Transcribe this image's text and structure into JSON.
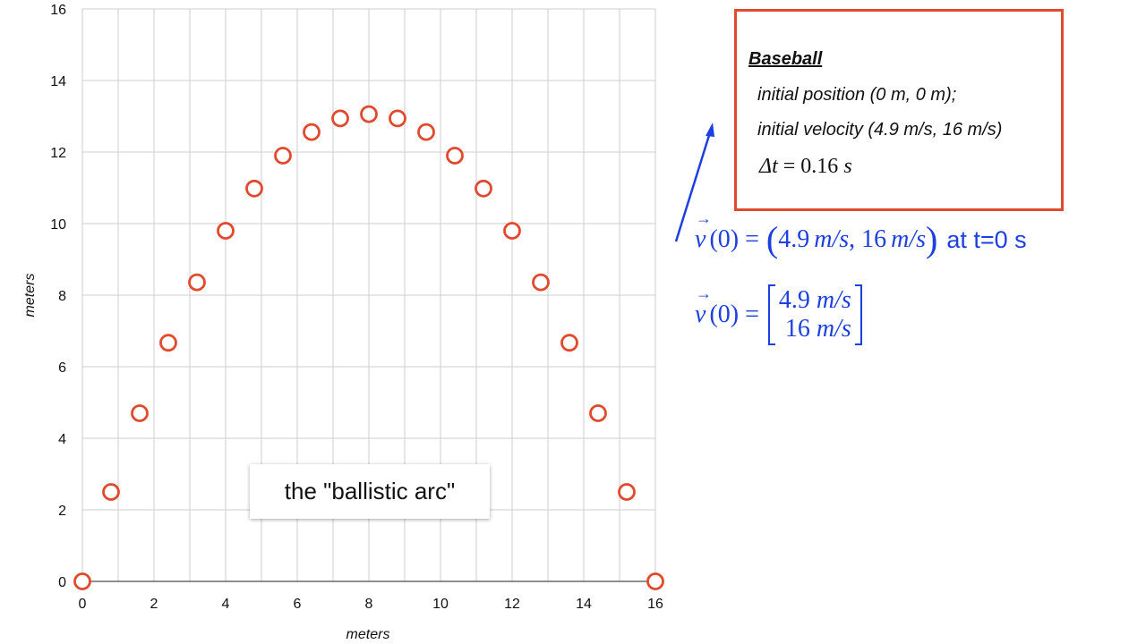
{
  "chart_data": {
    "type": "scatter",
    "xlabel": "meters",
    "ylabel": "meters",
    "xlim": [
      0,
      16
    ],
    "ylim": [
      0,
      16
    ],
    "xticks": [
      "0",
      "2",
      "4",
      "6",
      "8",
      "10",
      "12",
      "14",
      "16"
    ],
    "yticks": [
      "0",
      "2",
      "4",
      "6",
      "8",
      "10",
      "12",
      "14",
      "16"
    ],
    "grid": true,
    "marker_color": "#e04a2f",
    "series": [
      {
        "points": [
          {
            "x": 0,
            "y": 0
          },
          {
            "x": 0.8,
            "y": 2.5
          },
          {
            "x": 1.6,
            "y": 4.7
          },
          {
            "x": 2.4,
            "y": 6.67
          },
          {
            "x": 3.2,
            "y": 8.36
          },
          {
            "x": 4.0,
            "y": 9.8
          },
          {
            "x": 4.8,
            "y": 10.98
          },
          {
            "x": 5.6,
            "y": 11.9
          },
          {
            "x": 6.4,
            "y": 12.56
          },
          {
            "x": 7.2,
            "y": 12.94
          },
          {
            "x": 8.0,
            "y": 13.06
          },
          {
            "x": 8.8,
            "y": 12.94
          },
          {
            "x": 9.6,
            "y": 12.56
          },
          {
            "x": 10.4,
            "y": 11.9
          },
          {
            "x": 11.2,
            "y": 10.98
          },
          {
            "x": 12.0,
            "y": 9.8
          },
          {
            "x": 12.8,
            "y": 8.36
          },
          {
            "x": 13.6,
            "y": 6.67
          },
          {
            "x": 14.4,
            "y": 4.7
          },
          {
            "x": 15.2,
            "y": 2.5
          },
          {
            "x": 16.0,
            "y": 0
          }
        ]
      }
    ],
    "annotation": "the \"ballistic arc\""
  },
  "infobox": {
    "title": "Baseball",
    "position_line": "initial position (0 m, 0 m);",
    "velocity_line": "initial velocity (4.9 m/s, 16 m/s)",
    "dt_symbol": "Δt",
    "dt_value": "= 0.16",
    "dt_unit": "s",
    "border_color": "#e04a2f"
  },
  "equations": {
    "color": "#1d3fe0",
    "v_symbol": "v",
    "v_arg": "(0) =",
    "vx": "4.9",
    "vy": "16",
    "unit": "m/s",
    "at_text": "at t=0 s"
  }
}
